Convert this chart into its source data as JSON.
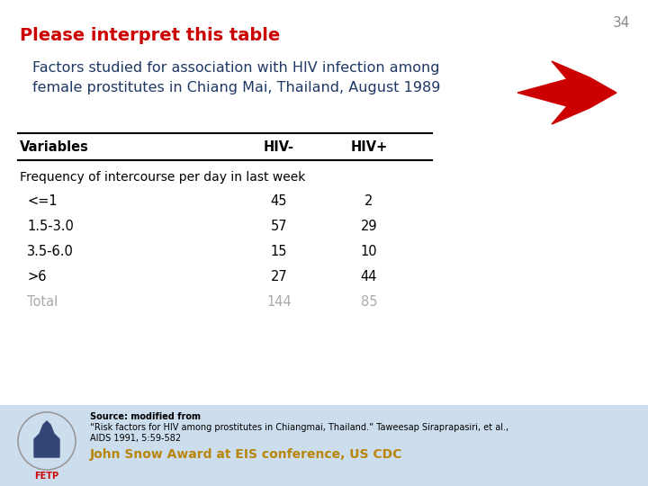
{
  "slide_number": "34",
  "title": "Please interpret this table",
  "title_color": "#cc0000",
  "subtitle_line1": "Factors studied for association with HIV infection among",
  "subtitle_line2": "female prostitutes in Chiang Mai, Thailand, August 1989",
  "subtitle_color": "#1f3864",
  "col_headers": [
    "Variables",
    "HIV-",
    "HIV+"
  ],
  "section_label": "Frequency of intercourse per day in last week",
  "rows": [
    [
      "<=1",
      "45",
      "2"
    ],
    [
      "1.5-3.0",
      "57",
      "29"
    ],
    [
      "3.5-6.0",
      "15",
      "10"
    ],
    [
      ">6",
      "27",
      "44"
    ]
  ],
  "total_row": [
    "Total",
    "144",
    "85"
  ],
  "source_line1": "Source: modified from",
  "source_line2": "“Risk factors for HIV among prostitutes in Chiangmai, Thailand.” Taweesap Siraprapasiri, et al.,",
  "source_line3": "AIDS 1991, 5:59-582",
  "footer_text": "John Snow Award at EIS conference, US CDC",
  "footer_color": "#b8860b",
  "bg_color": "#ffffff",
  "footer_bg": "#ccdded",
  "table_line_color": "#000000",
  "total_color": "#aaaaaa",
  "body_color": "#000000",
  "slide_num_color": "#888888"
}
